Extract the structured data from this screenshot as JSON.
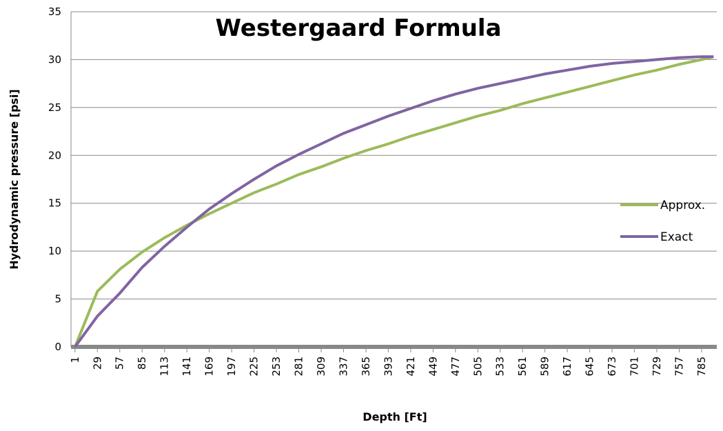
{
  "chart_data": {
    "type": "line",
    "title": "Westergaard Formula",
    "xlabel": "Depth [Ft]",
    "ylabel": "Hydrodynamic pressure [psi]",
    "x": [
      1,
      29,
      57,
      85,
      113,
      141,
      169,
      197,
      225,
      253,
      281,
      309,
      337,
      365,
      393,
      421,
      449,
      477,
      505,
      533,
      561,
      589,
      617,
      645,
      673,
      701,
      729,
      757,
      785,
      800
    ],
    "series": [
      {
        "name": "Approx.",
        "color": "#9bbb59",
        "values": [
          0,
          5.8,
          8.1,
          9.9,
          11.4,
          12.7,
          13.9,
          15.0,
          16.1,
          17.0,
          18.0,
          18.8,
          19.7,
          20.5,
          21.2,
          22.0,
          22.7,
          23.4,
          24.1,
          24.7,
          25.4,
          26.0,
          26.6,
          27.2,
          27.8,
          28.4,
          28.9,
          29.5,
          30.0,
          30.3
        ]
      },
      {
        "name": "Exact",
        "color": "#8064a2",
        "values": [
          0,
          3.2,
          5.6,
          8.3,
          10.5,
          12.5,
          14.4,
          16.0,
          17.5,
          18.9,
          20.1,
          21.2,
          22.3,
          23.2,
          24.1,
          24.9,
          25.7,
          26.4,
          27.0,
          27.5,
          28.0,
          28.5,
          28.9,
          29.3,
          29.6,
          29.8,
          30.0,
          30.2,
          30.3,
          30.3
        ]
      }
    ],
    "xlim": [
      -4,
      804
    ],
    "xticks": [
      1,
      29,
      57,
      85,
      113,
      141,
      169,
      197,
      225,
      253,
      281,
      309,
      337,
      365,
      393,
      421,
      449,
      477,
      505,
      533,
      561,
      589,
      617,
      645,
      673,
      701,
      729,
      757,
      785
    ],
    "ylim": [
      0,
      35
    ],
    "yticks": [
      0,
      5,
      10,
      15,
      20,
      25,
      30,
      35
    ],
    "grid": true,
    "legend": "right"
  }
}
